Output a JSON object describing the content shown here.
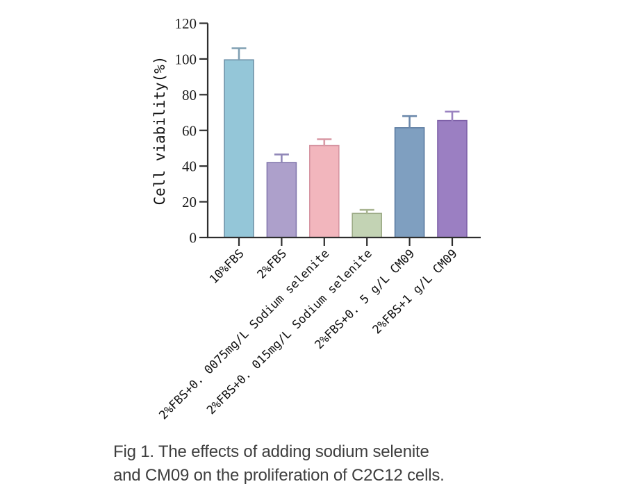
{
  "caption": {
    "line1": "Fig 1. The effects of adding sodium selenite",
    "line2": "and CM09 on the proliferation of C2C12 cells."
  },
  "chart_data": {
    "type": "bar",
    "title": "",
    "xlabel": "",
    "ylabel": "Cell viability(%)",
    "ylim": [
      0,
      120
    ],
    "yticks": [
      0,
      20,
      40,
      60,
      80,
      100,
      120
    ],
    "grid": false,
    "legend": false,
    "categories": [
      "10%FBS",
      "2%FBS",
      "2%FBS+0. 0075mg/L Sodium selenite",
      "2%FBS+0. 015mg/L Sodium selenite",
      "2%FBS+0. 5 g/L CM09",
      "2%FBS+1 g/L CM09"
    ],
    "values": [
      99.5,
      42,
      51.5,
      13.5,
      61.5,
      65.5
    ],
    "errors": [
      6.5,
      4.5,
      3.5,
      2,
      6.5,
      5
    ],
    "bar_fill_colors": [
      "#94c6d8",
      "#ada0cb",
      "#f2b6bd",
      "#c3d3b4",
      "#7f9fc0",
      "#9b7fc2"
    ],
    "bar_edge_colors": [
      "#6e93a9",
      "#8479ae",
      "#d695a2",
      "#9cab86",
      "#5a7aa0",
      "#7e60a8"
    ],
    "error_bar_colors": [
      "#7f9fb2",
      "#9188b8",
      "#d99aa6",
      "#a9b592",
      "#6c88ab",
      "#9a82c0"
    ],
    "axis_color": "#2e2e2e",
    "tick_label_color": "#1a1a1a"
  }
}
